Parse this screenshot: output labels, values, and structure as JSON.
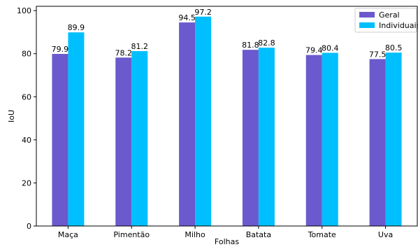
{
  "chart_data": {
    "type": "bar",
    "title": "",
    "xlabel": "Folhas",
    "ylabel": "IoU",
    "ylim": [
      0,
      102
    ],
    "yticks": [
      0,
      20,
      40,
      60,
      80,
      100
    ],
    "categories": [
      "Maça",
      "Pimentão",
      "Milho",
      "Batata",
      "Tomate",
      "Uva"
    ],
    "series": [
      {
        "name": "Geral",
        "color": "#6a5acd",
        "values": [
          79.9,
          78.2,
          94.5,
          81.8,
          79.4,
          77.5
        ]
      },
      {
        "name": "Individuais",
        "color": "#00bfff",
        "values": [
          89.9,
          81.2,
          97.2,
          82.8,
          80.4,
          80.5
        ]
      }
    ],
    "legend": "top-right",
    "grid": false
  }
}
